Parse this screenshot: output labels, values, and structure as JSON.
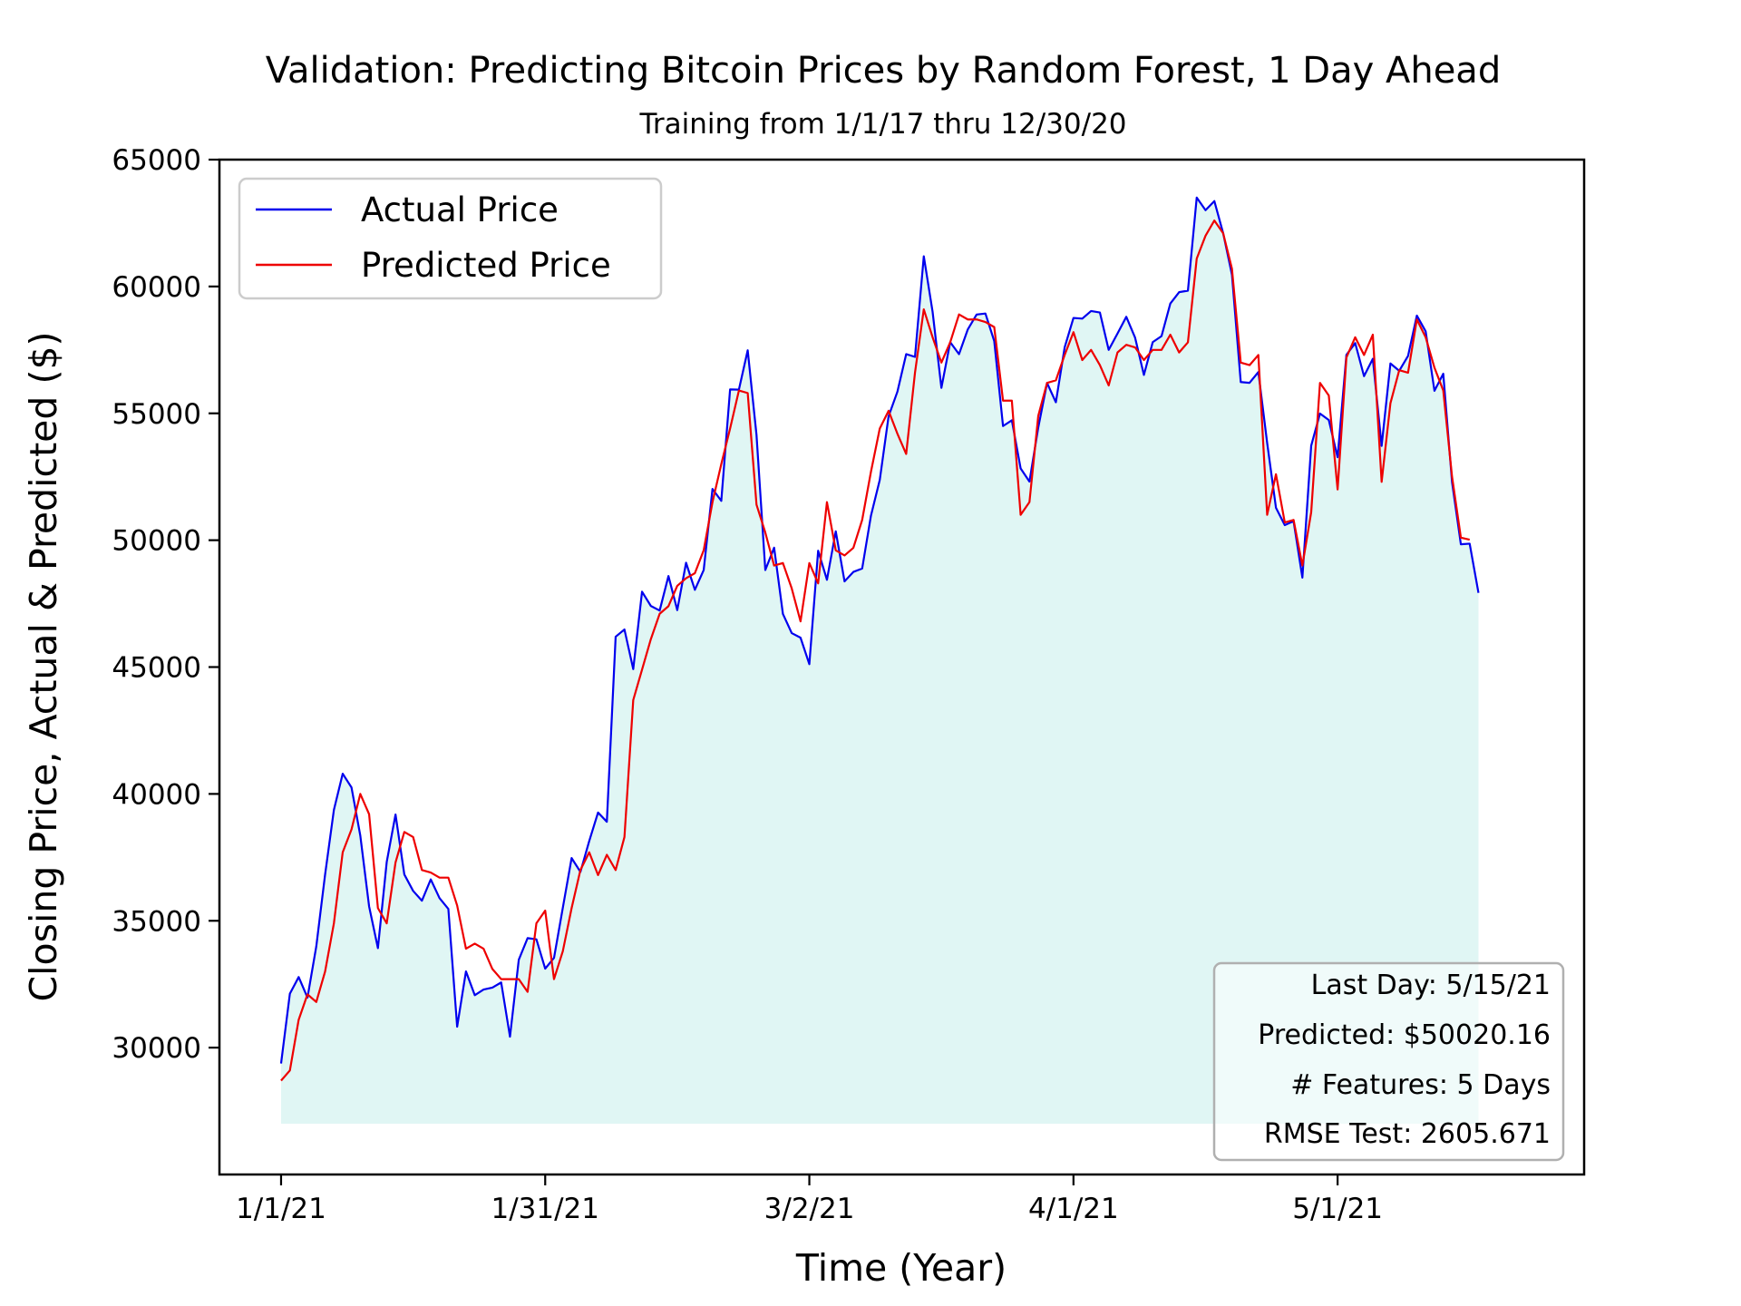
{
  "chart_data": {
    "type": "line",
    "title": "Validation: Predicting Bitcoin Prices by Random Forest, 1 Day Ahead",
    "subtitle": "Training from 1/1/17 thru 12/30/20",
    "xlabel": "Time (Year)",
    "ylabel": "Closing Price, Actual & Predicted ($)",
    "x_start": "2021-01-01",
    "x_end": "2021-05-15",
    "xlim": [
      "2020-12-25",
      "2021-05-29"
    ],
    "ylim": [
      25000,
      65000
    ],
    "yticks": [
      30000,
      35000,
      40000,
      45000,
      50000,
      55000,
      60000,
      65000
    ],
    "xticks": [
      {
        "date": "2021-01-01",
        "label": "1/1/21"
      },
      {
        "date": "2021-01-31",
        "label": "1/31/21"
      },
      {
        "date": "2021-03-02",
        "label": "3/2/21"
      },
      {
        "date": "2021-04-01",
        "label": "4/1/21"
      },
      {
        "date": "2021-05-01",
        "label": "5/1/21"
      }
    ],
    "fill_baseline": 27000,
    "fill_color": "#e0f6f4",
    "legend_position": "upper left",
    "series": [
      {
        "name": "Actual Price",
        "color": "#0000ee",
        "values": [
          29374,
          32127,
          32782,
          31971,
          33992,
          36824,
          39371,
          40797,
          40254,
          38356,
          35566,
          33922,
          37316,
          39188,
          36825,
          36178,
          35792,
          36631,
          35891,
          35468,
          30826,
          33005,
          32067,
          32289,
          32366,
          32569,
          30432,
          33466,
          34316,
          34269,
          33114,
          33537,
          35510,
          37472,
          36926,
          38144,
          39266,
          38903,
          46196,
          46481,
          44919,
          47970,
          47408,
          47227,
          48588,
          47245,
          49111,
          48044,
          48822,
          52019,
          51551,
          55944,
          55934,
          57485,
          54150,
          48824,
          49705,
          47094,
          46339,
          46156,
          45115,
          49587,
          48440,
          50349,
          48376,
          48751,
          48883,
          50971,
          52376,
          54885,
          55851,
          57333,
          57225,
          61189,
          59004,
          56005,
          57805,
          57333,
          58310,
          58895,
          58935,
          57850,
          54500,
          54726,
          52828,
          52310,
          54439,
          56198,
          55437,
          57603,
          58760,
          58734,
          59033,
          58975,
          57501,
          58147,
          58805,
          57982,
          56514,
          57805,
          58043,
          59328,
          59776,
          59835,
          63504,
          63006,
          63366,
          62103,
          60466,
          56233,
          56203,
          56626,
          53833,
          51279,
          50595,
          50749,
          48526,
          53723,
          54993,
          54738,
          53270,
          57305,
          57768,
          56465,
          57149,
          53718,
          56967,
          56676,
          57263,
          58854,
          58232,
          55889,
          56561,
          52284,
          49839,
          49864,
          47926
        ]
      },
      {
        "name": "Predicted Price",
        "color": "#ee0000",
        "values": [
          28700,
          29100,
          31100,
          32100,
          31800,
          33000,
          34900,
          37700,
          38600,
          40000,
          39200,
          35500,
          34900,
          37300,
          38500,
          38300,
          37000,
          36900,
          36700,
          36700,
          35600,
          33900,
          34100,
          33900,
          33100,
          32700,
          32700,
          32700,
          32200,
          34900,
          35400,
          32700,
          33800,
          35500,
          37000,
          37700,
          36800,
          37600,
          37000,
          38300,
          43700,
          44900,
          46100,
          47100,
          47400,
          48200,
          48500,
          48700,
          49600,
          51500,
          53000,
          54400,
          55900,
          55800,
          51400,
          50300,
          49000,
          49100,
          48100,
          46800,
          49100,
          48300,
          51500,
          49600,
          49400,
          49700,
          50800,
          52700,
          54400,
          55100,
          54200,
          53400,
          56600,
          59100,
          58000,
          57000,
          57800,
          58900,
          58700,
          58700,
          58600,
          58400,
          55500,
          55500,
          51000,
          51500,
          54900,
          56200,
          56300,
          57300,
          58200,
          57100,
          57500,
          56900,
          56100,
          57400,
          57700,
          57600,
          57100,
          57500,
          57500,
          58100,
          57400,
          57800,
          61100,
          62000,
          62600,
          62100,
          60700,
          57000,
          56900,
          57300,
          51000,
          52600,
          50700,
          50800,
          49000,
          51100,
          56200,
          55700,
          52000,
          57200,
          58000,
          57300,
          58100,
          52300,
          55400,
          56700,
          56600,
          58700,
          58000,
          56800,
          55900,
          52500,
          50100,
          50020
        ]
      }
    ],
    "info_box": {
      "last_day": "Last Day: 5/15/21",
      "predicted": "Predicted: $50020.16",
      "features": "# Features: 5 Days",
      "rmse": "RMSE Test: 2605.671"
    }
  }
}
